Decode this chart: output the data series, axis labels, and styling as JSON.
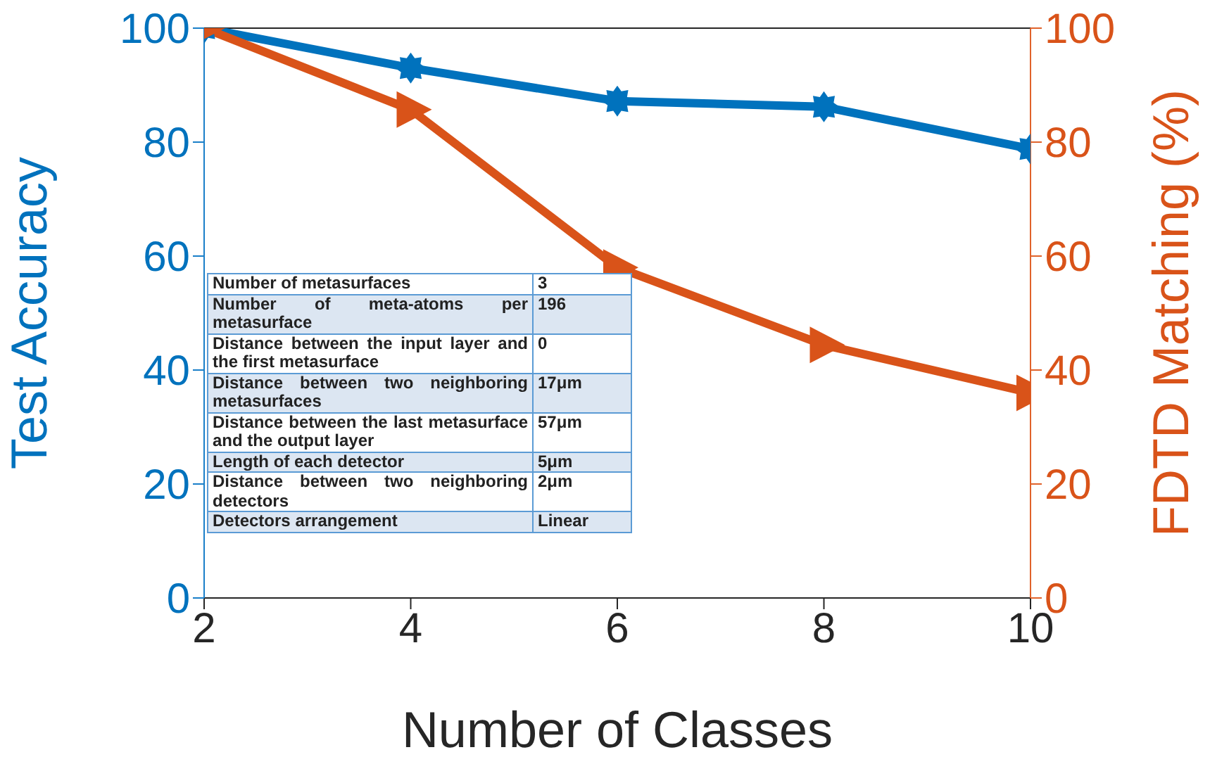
{
  "chart_data": {
    "type": "line",
    "xlabel": "Number of Classes",
    "ylabel": "Test Accuracy",
    "y2label": "FDTD Matching (%)",
    "x": [
      2,
      4,
      6,
      8,
      10
    ],
    "series": [
      {
        "color": "#0072bd",
        "values": [
          100,
          93,
          87.2,
          86.2,
          78.8
        ],
        "marker": "star"
      },
      {
        "color": "#d95319",
        "values": [
          100,
          85.7,
          58,
          44.4,
          36
        ],
        "marker": "triangle",
        "axis": "y2"
      }
    ],
    "xlim": [
      2,
      10
    ],
    "xticks": [
      2,
      4,
      6,
      8,
      10
    ],
    "ylim": [
      0,
      100
    ],
    "yticks": [
      0,
      20,
      40,
      60,
      80,
      100
    ],
    "y2lim": [
      0,
      100
    ],
    "y2ticks": [
      0,
      20,
      40,
      60,
      80,
      100
    ],
    "grid": false,
    "legend": false,
    "annotations": [
      "Number of metasurfaces",
      "3",
      "Number of meta-atoms per metasurface",
      "196",
      "Distance between the input layer and the first metasurface",
      "0",
      "Distance between two neighboring metasurfaces",
      "17μm",
      "Distance between the last metasurface and the output layer",
      "57μm",
      "Length of each detector",
      "5μm",
      "Distance between two neighboring detectors",
      "2μm",
      "Detectors arrangement",
      "Linear"
    ]
  }
}
